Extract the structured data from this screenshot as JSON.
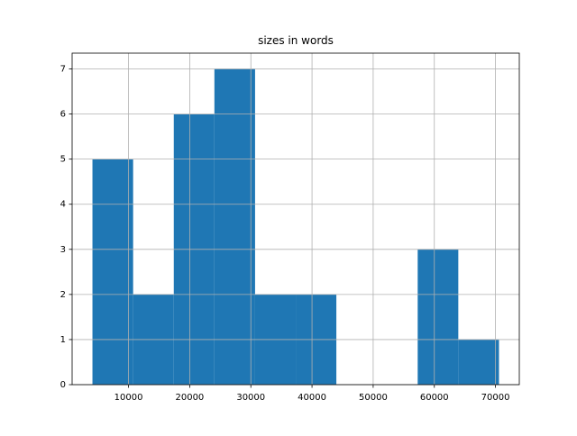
{
  "chart_data": {
    "type": "histogram",
    "title": "sizes in words",
    "bins": [
      4100,
      10750,
      17400,
      24040,
      30690,
      37340,
      43980,
      50630,
      57280,
      63920,
      70570
    ],
    "values": [
      5,
      2,
      6,
      7,
      2,
      2,
      0,
      0,
      3,
      1
    ],
    "color": "#1f77b4",
    "xlim": [
      777,
      73893
    ],
    "xticks": [
      10000,
      20000,
      30000,
      40000,
      50000,
      60000,
      70000
    ],
    "ylim": [
      0,
      7.35
    ],
    "yticks": [
      0,
      1,
      2,
      3,
      4,
      5,
      6,
      7
    ],
    "grid": true
  }
}
